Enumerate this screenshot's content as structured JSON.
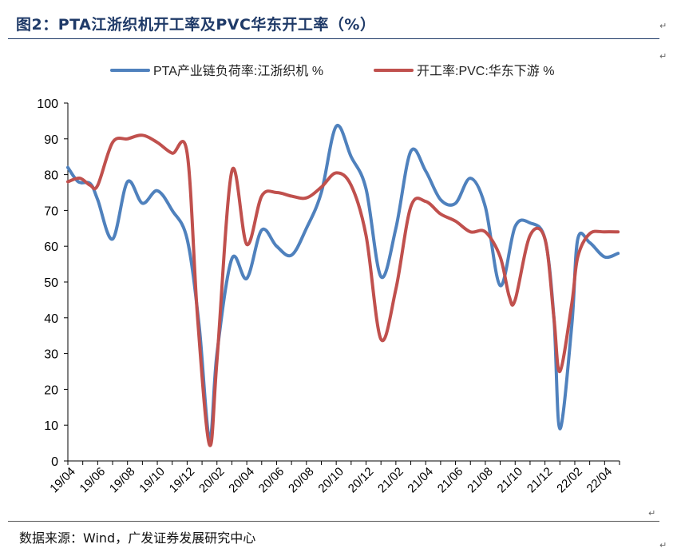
{
  "figure": {
    "title": "图2：PTA江浙织机开工率及PVC华东开工率（%）",
    "source": "数据来源：Wind，广发证券发展研究中心",
    "para_mark": "↵"
  },
  "chart_data": {
    "type": "line",
    "title": "",
    "xlabel": "",
    "ylabel": "",
    "ylim": [
      0,
      100
    ],
    "yticks": [
      0,
      10,
      20,
      30,
      40,
      50,
      60,
      70,
      80,
      90,
      100
    ],
    "xlim": [
      0,
      37
    ],
    "xticks": [
      {
        "label": "19/04",
        "x": 0
      },
      {
        "label": "19/06",
        "x": 2
      },
      {
        "label": "19/08",
        "x": 4
      },
      {
        "label": "19/10",
        "x": 6
      },
      {
        "label": "19/12",
        "x": 8
      },
      {
        "label": "20/02",
        "x": 10
      },
      {
        "label": "20/04",
        "x": 12
      },
      {
        "label": "20/06",
        "x": 14
      },
      {
        "label": "20/08",
        "x": 16
      },
      {
        "label": "20/10",
        "x": 18
      },
      {
        "label": "20/12",
        "x": 20
      },
      {
        "label": "21/02",
        "x": 22
      },
      {
        "label": "21/04",
        "x": 24
      },
      {
        "label": "21/06",
        "x": 26
      },
      {
        "label": "21/08",
        "x": 28
      },
      {
        "label": "21/10",
        "x": 30
      },
      {
        "label": "21/12",
        "x": 32
      },
      {
        "label": "22/02",
        "x": 34
      },
      {
        "label": "22/04",
        "x": 36
      }
    ],
    "grid": false,
    "legend_position": "top",
    "series": [
      {
        "name": "PTA产业链负荷率:江浙织机 %",
        "color": "#4f81bd",
        "points": [
          [
            0,
            82
          ],
          [
            0.7,
            78
          ],
          [
            1.5,
            77.5
          ],
          [
            2,
            73
          ],
          [
            3,
            62
          ],
          [
            4,
            78
          ],
          [
            5,
            72
          ],
          [
            6,
            75.5
          ],
          [
            7,
            70
          ],
          [
            8,
            62
          ],
          [
            8.8,
            38
          ],
          [
            9.5,
            6
          ],
          [
            10,
            30
          ],
          [
            11,
            56.5
          ],
          [
            12,
            51
          ],
          [
            13,
            64.5
          ],
          [
            14,
            60
          ],
          [
            15,
            57.5
          ],
          [
            16,
            65
          ],
          [
            17,
            75
          ],
          [
            18,
            93.5
          ],
          [
            19,
            85
          ],
          [
            20,
            76
          ],
          [
            21,
            51.5
          ],
          [
            22,
            65
          ],
          [
            23,
            86.5
          ],
          [
            24,
            81
          ],
          [
            25,
            73
          ],
          [
            26,
            72
          ],
          [
            27,
            79
          ],
          [
            28,
            71
          ],
          [
            29,
            49
          ],
          [
            30,
            65.5
          ],
          [
            31,
            66.5
          ],
          [
            32,
            62
          ],
          [
            32.6,
            40
          ],
          [
            33,
            9
          ],
          [
            33.8,
            38
          ],
          [
            34.2,
            62
          ],
          [
            35,
            61
          ],
          [
            36,
            57
          ],
          [
            36.9,
            58
          ]
        ]
      },
      {
        "name": "开工率:PVC:华东下游 %",
        "color": "#c0504d",
        "points": [
          [
            0,
            78
          ],
          [
            0.8,
            79
          ],
          [
            1.5,
            77
          ],
          [
            2,
            77
          ],
          [
            3,
            89
          ],
          [
            4,
            90
          ],
          [
            5,
            91
          ],
          [
            6,
            89
          ],
          [
            7,
            86
          ],
          [
            8,
            86
          ],
          [
            8.7,
            40
          ],
          [
            9.5,
            4.5
          ],
          [
            10,
            28
          ],
          [
            11,
            81
          ],
          [
            12,
            60.5
          ],
          [
            13,
            74
          ],
          [
            14,
            75
          ],
          [
            15,
            74
          ],
          [
            16,
            73.5
          ],
          [
            17,
            76.5
          ],
          [
            18,
            80.5
          ],
          [
            19,
            77
          ],
          [
            20,
            63
          ],
          [
            21,
            34
          ],
          [
            22,
            48
          ],
          [
            23,
            71
          ],
          [
            24,
            72.5
          ],
          [
            25,
            69
          ],
          [
            26,
            67
          ],
          [
            27,
            64
          ],
          [
            28,
            64
          ],
          [
            29,
            57
          ],
          [
            29.6,
            46
          ],
          [
            30,
            45
          ],
          [
            31,
            63
          ],
          [
            32,
            62
          ],
          [
            32.6,
            40
          ],
          [
            33,
            25
          ],
          [
            33.8,
            44
          ],
          [
            34.2,
            57
          ],
          [
            35,
            63.5
          ],
          [
            36,
            64
          ],
          [
            36.9,
            64
          ]
        ]
      }
    ]
  }
}
